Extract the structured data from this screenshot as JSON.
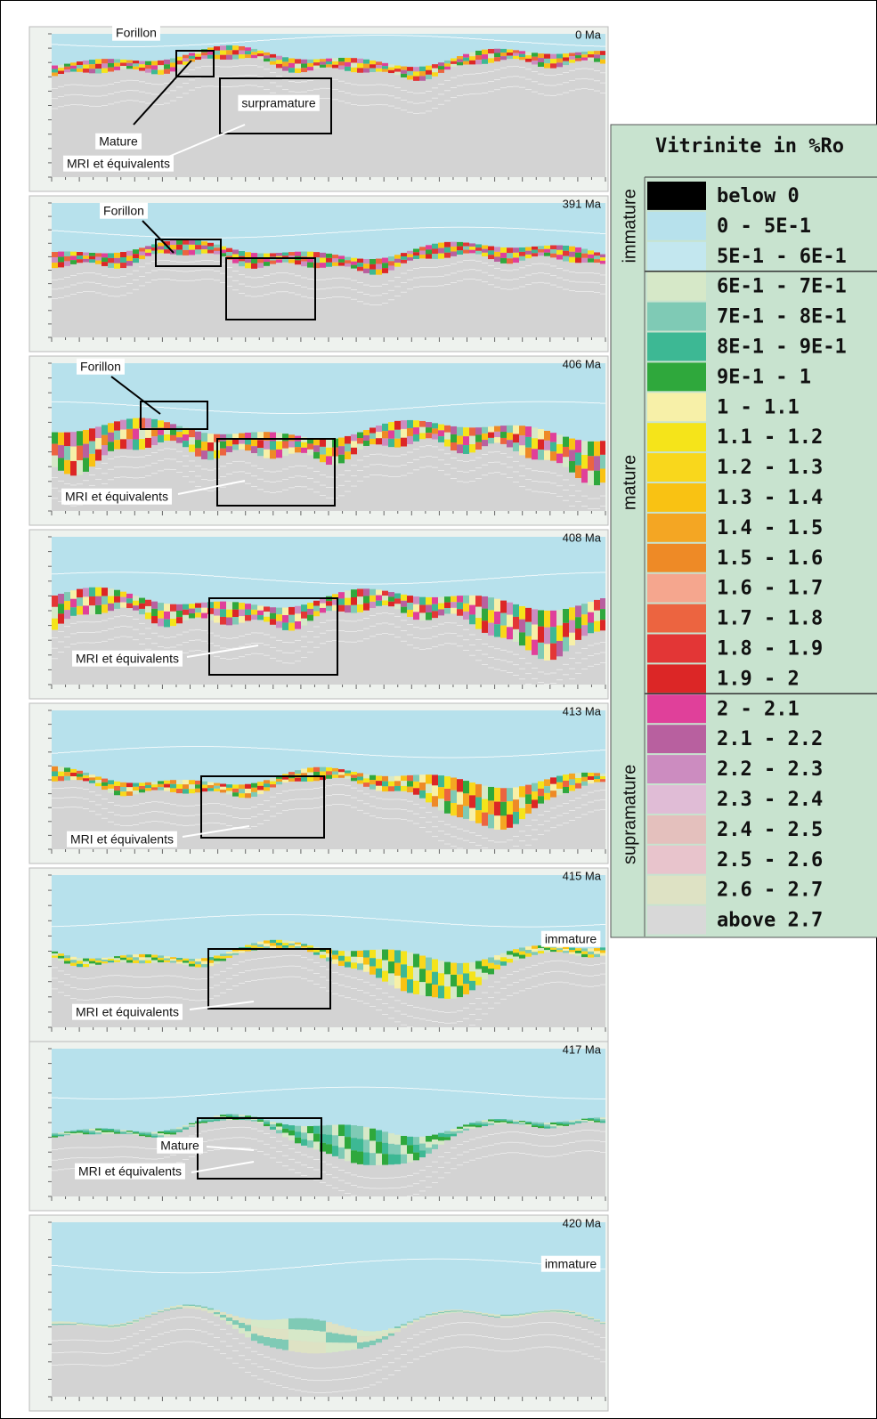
{
  "panels": [
    {
      "age": "0 Ma",
      "annotations": [
        "Forillon",
        "surpramature",
        "Mature",
        "MRI et équivalents"
      ]
    },
    {
      "age": "391 Ma",
      "annotations": [
        "Forillon"
      ]
    },
    {
      "age": "406 Ma",
      "annotations": [
        "Forillon",
        "MRI et équivalents"
      ]
    },
    {
      "age": "408 Ma",
      "annotations": [
        "MRI et équivalents"
      ]
    },
    {
      "age": "413 Ma",
      "annotations": [
        "MRI et équivalents"
      ]
    },
    {
      "age": "415 Ma",
      "annotations": [
        "immature",
        "MRI et équivalents"
      ]
    },
    {
      "age": "417 Ma",
      "annotations": [
        "Mature",
        "MRI et équivalents"
      ]
    },
    {
      "age": "420 Ma",
      "annotations": [
        "immature"
      ]
    }
  ],
  "legend": {
    "title": "Vitrinite in %Ro",
    "groups": [
      {
        "label": "immature",
        "items": [
          {
            "label": "below 0",
            "color": "#000000"
          },
          {
            "label": "0 - 5E-1",
            "color": "#b7e1ec"
          },
          {
            "label": "5E-1 - 6E-1",
            "color": "#c3e7ef"
          }
        ]
      },
      {
        "label": "mature",
        "items": [
          {
            "label": "6E-1 - 7E-1",
            "color": "#d6e8c8"
          },
          {
            "label": "7E-1 - 8E-1",
            "color": "#7fcab5"
          },
          {
            "label": "8E-1 - 9E-1",
            "color": "#3db894"
          },
          {
            "label": "9E-1 - 1",
            "color": "#2fa83c"
          },
          {
            "label": "1 - 1.1",
            "color": "#f7f0a8"
          },
          {
            "label": "1.1 - 1.2",
            "color": "#f5e41a"
          },
          {
            "label": "1.2 - 1.3",
            "color": "#f9d71c"
          },
          {
            "label": "1.3 - 1.4",
            "color": "#f9c213"
          },
          {
            "label": "1.4 - 1.5",
            "color": "#f4a623"
          },
          {
            "label": "1.5 - 1.6",
            "color": "#ee8a26"
          },
          {
            "label": "1.6 - 1.7",
            "color": "#f5a68e"
          },
          {
            "label": "1.7 - 1.8",
            "color": "#ec6440"
          },
          {
            "label": "1.8 - 1.9",
            "color": "#e33636"
          },
          {
            "label": "1.9 - 2",
            "color": "#dc2626"
          }
        ]
      },
      {
        "label": "supramature",
        "items": [
          {
            "label": "2 - 2.1",
            "color": "#e0409a"
          },
          {
            "label": "2.1 - 2.2",
            "color": "#b8609f"
          },
          {
            "label": "2.2 - 2.3",
            "color": "#cc8cc0"
          },
          {
            "label": "2.3 - 2.4",
            "color": "#e0bcd6"
          },
          {
            "label": "2.4 - 2.5",
            "color": "#e4c0bd"
          },
          {
            "label": "2.5 - 2.6",
            "color": "#e8c4cc"
          },
          {
            "label": "2.6 - 2.7",
            "color": "#dee2c4"
          },
          {
            "label": "above 2.7",
            "color": "#d8d8d8"
          }
        ]
      }
    ]
  }
}
